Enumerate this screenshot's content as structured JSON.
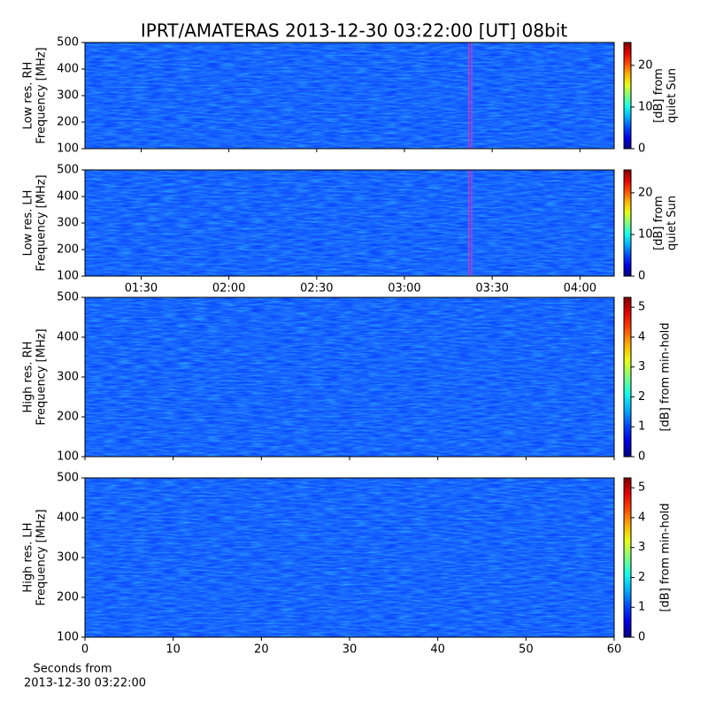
{
  "title": "IPRT/AMATERAS 2013-12-30 03:22:00 [UT]   08bit",
  "chart_data": [
    {
      "type": "heatmap",
      "ylabel": [
        "Low res. RH",
        "Frequency [MHz]"
      ],
      "ylim": [
        100,
        500
      ],
      "yticks": [
        100,
        200,
        300,
        400,
        500
      ],
      "xlim": [
        70.8,
        251.7
      ],
      "xticks": [
        {
          "value": 90,
          "label": "01:30"
        },
        {
          "value": 120,
          "label": "02:00"
        },
        {
          "value": 150,
          "label": "02:30"
        },
        {
          "value": 180,
          "label": "03:00"
        },
        {
          "value": 210,
          "label": "03:30"
        },
        {
          "value": 240,
          "label": "04:00"
        }
      ],
      "xticklabels": false,
      "marker_span": [
        202,
        203
      ],
      "marker_color": "#b040d0",
      "colormap": "jet",
      "colorbar": {
        "label": [
          "[dB] from",
          "quiet Sun"
        ],
        "lim": [
          0,
          25.5
        ],
        "ticks": [
          0,
          10,
          20
        ]
      }
    },
    {
      "type": "heatmap",
      "ylabel": [
        "Low res. LH",
        "Frequency [MHz]"
      ],
      "ylim": [
        100,
        500
      ],
      "yticks": [
        100,
        200,
        300,
        400,
        500
      ],
      "xlim": [
        70.8,
        251.7
      ],
      "xticks": [
        {
          "value": 90,
          "label": "01:30"
        },
        {
          "value": 120,
          "label": "02:00"
        },
        {
          "value": 150,
          "label": "02:30"
        },
        {
          "value": 180,
          "label": "03:00"
        },
        {
          "value": 210,
          "label": "03:30"
        },
        {
          "value": 240,
          "label": "04:00"
        }
      ],
      "xticklabels": true,
      "marker_span": [
        202,
        203
      ],
      "marker_color": "#b040d0",
      "colormap": "jet",
      "colorbar": {
        "label": [
          "[dB] from",
          "quiet Sun"
        ],
        "lim": [
          0,
          25.5
        ],
        "ticks": [
          0,
          10,
          20
        ]
      }
    },
    {
      "type": "heatmap",
      "ylabel": [
        "High res. RH",
        "Frequency [MHz]"
      ],
      "ylim": [
        100,
        500
      ],
      "yticks": [
        100,
        200,
        300,
        400,
        500
      ],
      "xlim": [
        0,
        60
      ],
      "xticks": [
        0,
        10,
        20,
        30,
        40,
        50,
        60
      ],
      "xticklabels": false,
      "colormap": "jet",
      "colorbar": {
        "label": [
          "[dB] from min-hold"
        ],
        "lim": [
          0,
          5.33
        ],
        "ticks": [
          0,
          1,
          2,
          3,
          4,
          5
        ]
      }
    },
    {
      "type": "heatmap",
      "ylabel": [
        "High res. LH",
        "Frequency [MHz]"
      ],
      "ylim": [
        100,
        500
      ],
      "yticks": [
        100,
        200,
        300,
        400,
        500
      ],
      "xlim": [
        0,
        60
      ],
      "xticks": [
        0,
        10,
        20,
        30,
        40,
        50,
        60
      ],
      "xticklabels": true,
      "xlabel": [
        "Seconds from",
        "2013-12-30 03:22:00"
      ],
      "colormap": "jet",
      "colorbar": {
        "label": [
          "[dB] from min-hold"
        ],
        "lim": [
          0,
          5.33
        ],
        "ticks": [
          0,
          1,
          2,
          3,
          4,
          5
        ]
      }
    }
  ]
}
